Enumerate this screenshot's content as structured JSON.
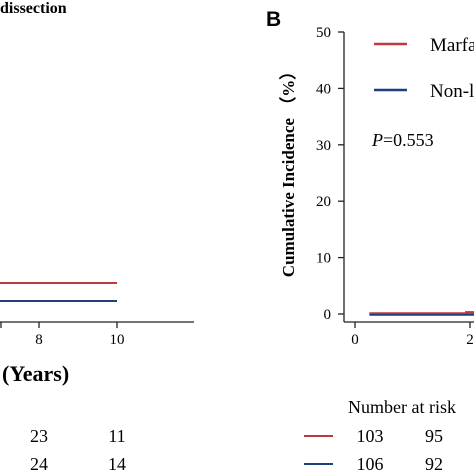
{
  "chart_data": [
    {
      "type": "line",
      "panel": "A",
      "title": "dissection",
      "xlabel": "(Years)",
      "xlim": [
        0,
        12
      ],
      "x_ticks": [
        8,
        10
      ],
      "series": [
        {
          "name": "Marfan",
          "color": "#c0393f",
          "x": [
            0,
            10
          ],
          "y": [
            2.5,
            2.5
          ]
        },
        {
          "name": "Non-Marfan",
          "color": "#1f3f7a",
          "x": [
            0,
            10
          ],
          "y": [
            1.5,
            1.5
          ]
        }
      ],
      "risk_table": {
        "times": [
          8,
          10
        ],
        "rows": [
          {
            "color": "#c0393f",
            "values": [
              "23",
              "11"
            ]
          },
          {
            "color": "#1f3f7a",
            "values": [
              "24",
              "14"
            ]
          }
        ]
      }
    },
    {
      "type": "line",
      "panel": "B",
      "panel_label": "B",
      "ylabel": "Cumulative Incidence （%）",
      "ylim": [
        0,
        50
      ],
      "y_ticks": [
        0,
        10,
        20,
        30,
        40,
        50
      ],
      "x_ticks": [
        0,
        2
      ],
      "annotation": {
        "italic": "P",
        "rest": "=0.553"
      },
      "legend": {
        "placement": "top-right",
        "entries": [
          "Marfa",
          "Non-l"
        ]
      },
      "series": [
        {
          "name": "Marfan",
          "color": "#c0393f",
          "x": [
            0.25,
            3.4
          ],
          "y": [
            0,
            0
          ]
        },
        {
          "name": "Non-Marfan",
          "color": "#1f3f7a",
          "x": [
            0.25,
            3.4
          ],
          "y": [
            0,
            0
          ]
        }
      ],
      "risk_table": {
        "title": "Number at risk",
        "times": [
          0,
          2
        ],
        "rows": [
          {
            "color": "#c0393f",
            "values": [
              "103",
              "95"
            ]
          },
          {
            "color": "#1f3f7a",
            "values": [
              "106",
              "92"
            ]
          }
        ]
      }
    }
  ]
}
